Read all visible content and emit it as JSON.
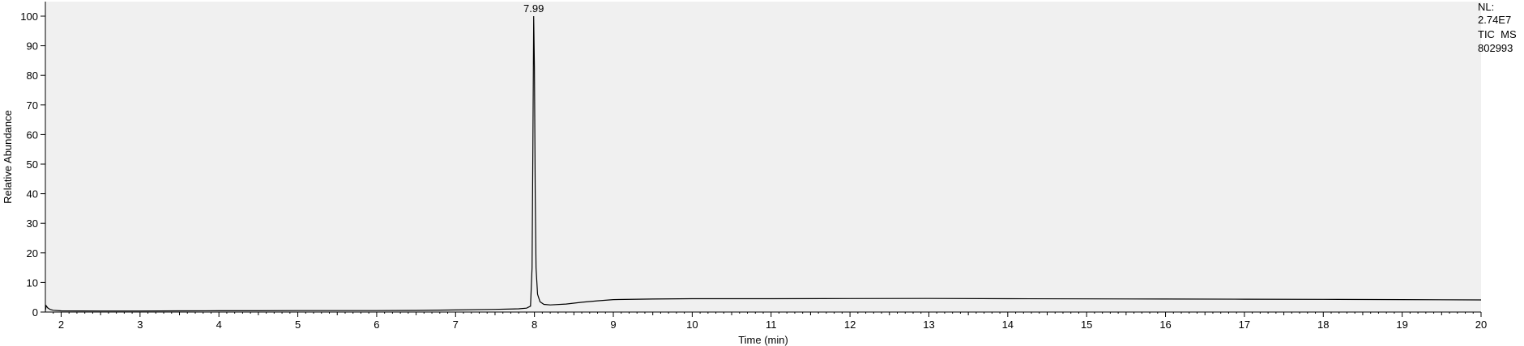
{
  "chart_data": {
    "type": "line",
    "title": "",
    "xlabel": "Time (min)",
    "ylabel": "Relative Abundance",
    "xlim": [
      1.8,
      20
    ],
    "ylim": [
      0,
      100
    ],
    "x_ticks": [
      2,
      3,
      4,
      5,
      6,
      7,
      8,
      9,
      10,
      11,
      12,
      13,
      14,
      15,
      16,
      17,
      18,
      19,
      20
    ],
    "y_ticks": [
      0,
      10,
      20,
      30,
      40,
      50,
      60,
      70,
      80,
      90,
      100
    ],
    "grid": false,
    "plot_background": "#f0f0f0",
    "line_color": "#000000",
    "peak_annotation": {
      "x": 7.99,
      "y": 100,
      "label": "7.99"
    },
    "series": [
      {
        "points": [
          [
            1.8,
            0.5
          ],
          [
            1.81,
            2.1
          ],
          [
            1.83,
            1.4
          ],
          [
            1.86,
            0.9
          ],
          [
            1.9,
            0.6
          ],
          [
            2.0,
            0.4
          ],
          [
            2.5,
            0.35
          ],
          [
            3.0,
            0.35
          ],
          [
            3.5,
            0.4
          ],
          [
            4.0,
            0.45
          ],
          [
            4.5,
            0.45
          ],
          [
            5.0,
            0.5
          ],
          [
            5.5,
            0.5
          ],
          [
            6.0,
            0.5
          ],
          [
            6.5,
            0.55
          ],
          [
            7.0,
            0.7
          ],
          [
            7.5,
            0.9
          ],
          [
            7.8,
            1.1
          ],
          [
            7.9,
            1.3
          ],
          [
            7.95,
            2.0
          ],
          [
            7.97,
            15.0
          ],
          [
            7.98,
            55.0
          ],
          [
            7.99,
            100.0
          ],
          [
            8.0,
            83.0
          ],
          [
            8.01,
            40.0
          ],
          [
            8.02,
            15.0
          ],
          [
            8.04,
            6.0
          ],
          [
            8.07,
            3.5
          ],
          [
            8.12,
            2.6
          ],
          [
            8.2,
            2.4
          ],
          [
            8.4,
            2.7
          ],
          [
            8.6,
            3.3
          ],
          [
            8.8,
            3.8
          ],
          [
            9.0,
            4.2
          ],
          [
            9.5,
            4.4
          ],
          [
            10.0,
            4.5
          ],
          [
            11.0,
            4.5
          ],
          [
            12.0,
            4.55
          ],
          [
            13.0,
            4.6
          ],
          [
            14.0,
            4.5
          ],
          [
            15.0,
            4.45
          ],
          [
            16.0,
            4.4
          ],
          [
            17.0,
            4.35
          ],
          [
            18.0,
            4.3
          ],
          [
            19.0,
            4.2
          ],
          [
            20.0,
            4.1
          ]
        ]
      }
    ]
  },
  "info_panel": {
    "line1": "NL:",
    "line2": "2.74E7",
    "line3": "TIC  MS",
    "line4": "802993"
  }
}
